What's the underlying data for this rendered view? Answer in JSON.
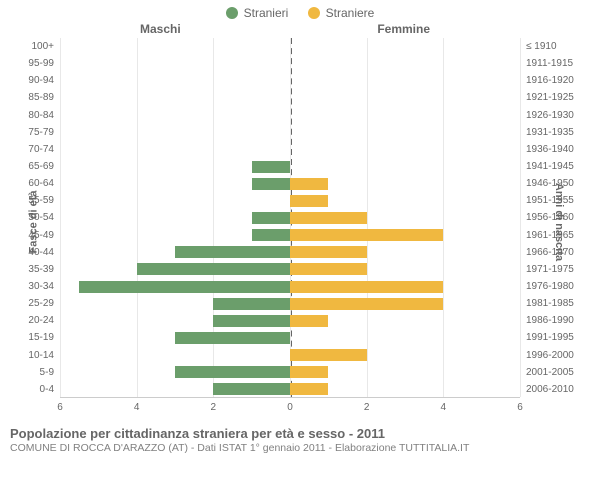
{
  "legend": {
    "male": {
      "label": "Stranieri",
      "color": "#6b9e6b"
    },
    "female": {
      "label": "Straniere",
      "color": "#f0b840"
    }
  },
  "headers": {
    "left": "Maschi",
    "right": "Femmine"
  },
  "axis_labels": {
    "left": "Fasce di età",
    "right": "Anni di nascita"
  },
  "chart": {
    "type": "population-pyramid",
    "x_max": 6,
    "x_ticks": [
      6,
      4,
      2,
      0,
      2,
      4,
      6
    ],
    "bar_color_male": "#6b9e6b",
    "bar_color_female": "#f0b840",
    "grid_color": "#e8e8e8",
    "center_line_color": "#666666",
    "background_color": "#ffffff",
    "label_fontsize": 10,
    "rows": [
      {
        "age": "100+",
        "birth": "≤ 1910",
        "m": 0,
        "f": 0
      },
      {
        "age": "95-99",
        "birth": "1911-1915",
        "m": 0,
        "f": 0
      },
      {
        "age": "90-94",
        "birth": "1916-1920",
        "m": 0,
        "f": 0
      },
      {
        "age": "85-89",
        "birth": "1921-1925",
        "m": 0,
        "f": 0
      },
      {
        "age": "80-84",
        "birth": "1926-1930",
        "m": 0,
        "f": 0
      },
      {
        "age": "75-79",
        "birth": "1931-1935",
        "m": 0,
        "f": 0
      },
      {
        "age": "70-74",
        "birth": "1936-1940",
        "m": 0,
        "f": 0
      },
      {
        "age": "65-69",
        "birth": "1941-1945",
        "m": 1,
        "f": 0
      },
      {
        "age": "60-64",
        "birth": "1946-1950",
        "m": 1,
        "f": 1
      },
      {
        "age": "55-59",
        "birth": "1951-1955",
        "m": 0,
        "f": 1
      },
      {
        "age": "50-54",
        "birth": "1956-1960",
        "m": 1,
        "f": 2
      },
      {
        "age": "45-49",
        "birth": "1961-1965",
        "m": 1,
        "f": 4
      },
      {
        "age": "40-44",
        "birth": "1966-1970",
        "m": 3,
        "f": 2
      },
      {
        "age": "35-39",
        "birth": "1971-1975",
        "m": 4,
        "f": 2
      },
      {
        "age": "30-34",
        "birth": "1976-1980",
        "m": 5.5,
        "f": 4
      },
      {
        "age": "25-29",
        "birth": "1981-1985",
        "m": 2,
        "f": 4
      },
      {
        "age": "20-24",
        "birth": "1986-1990",
        "m": 2,
        "f": 1
      },
      {
        "age": "15-19",
        "birth": "1991-1995",
        "m": 3,
        "f": 0
      },
      {
        "age": "10-14",
        "birth": "1996-2000",
        "m": 0,
        "f": 2
      },
      {
        "age": "5-9",
        "birth": "2001-2005",
        "m": 3,
        "f": 1
      },
      {
        "age": "0-4",
        "birth": "2006-2010",
        "m": 2,
        "f": 1
      }
    ]
  },
  "footer": {
    "title": "Popolazione per cittadinanza straniera per età e sesso - 2011",
    "subtitle": "COMUNE DI ROCCA D'ARAZZO (AT) - Dati ISTAT 1° gennaio 2011 - Elaborazione TUTTITALIA.IT"
  }
}
